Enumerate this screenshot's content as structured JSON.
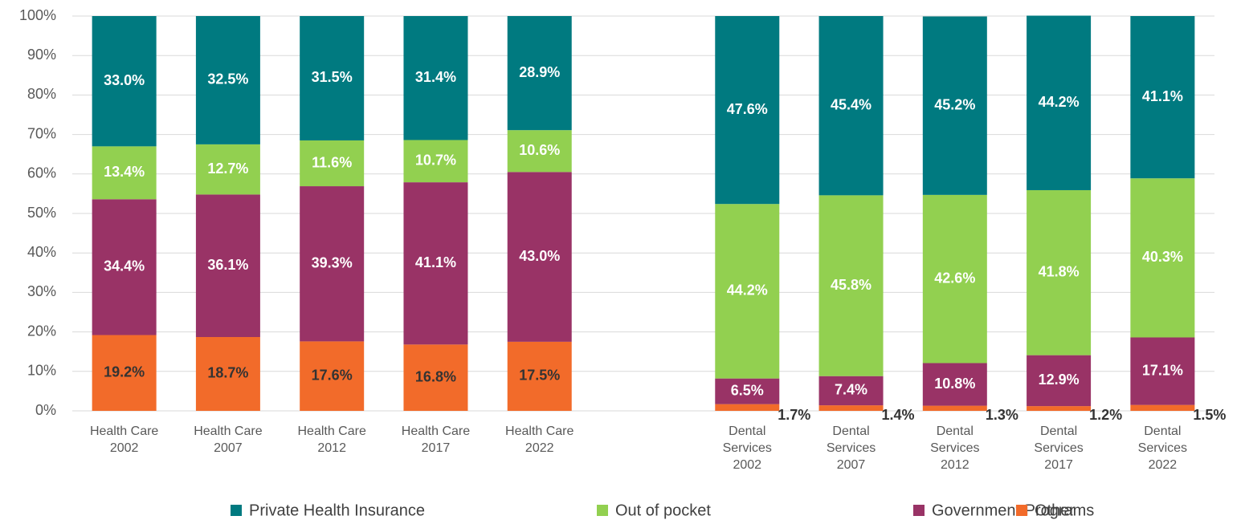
{
  "chart_data": {
    "type": "stacked_bar",
    "categories": [
      [
        "Health Care",
        "2002"
      ],
      [
        "Health Care",
        "2007"
      ],
      [
        "Health Care",
        "2012"
      ],
      [
        "Health Care",
        "2017"
      ],
      [
        "Health Care",
        "2022"
      ],
      null,
      [
        "Dental",
        "Services",
        "2002"
      ],
      [
        "Dental",
        "Services",
        "2007"
      ],
      [
        "Dental",
        "Services",
        "2012"
      ],
      [
        "Dental",
        "Services",
        "2017"
      ],
      [
        "Dental",
        "Services",
        "2022"
      ]
    ],
    "series": [
      {
        "name": "Other",
        "color": "#f26b2a",
        "values": [
          19.2,
          18.7,
          17.6,
          16.8,
          17.5,
          null,
          1.7,
          1.4,
          1.3,
          1.2,
          1.5
        ],
        "value_labels": [
          "19.2%",
          "18.7%",
          "17.6%",
          "16.8%",
          "17.5%",
          null,
          "1.7%",
          "1.4%",
          "1.3%",
          "1.2%",
          "1.5%"
        ]
      },
      {
        "name": "Government Programs",
        "color": "#993366",
        "values": [
          34.4,
          36.1,
          39.3,
          41.1,
          43.0,
          null,
          6.5,
          7.4,
          10.8,
          12.9,
          17.1
        ],
        "value_labels": [
          "34.4%",
          "36.1%",
          "39.3%",
          "41.1%",
          "43.0%",
          null,
          "6.5%",
          "7.4%",
          "10.8%",
          "12.9%",
          "17.1%"
        ]
      },
      {
        "name": "Out of pocket",
        "color": "#92d050",
        "values": [
          13.4,
          12.7,
          11.6,
          10.7,
          10.6,
          null,
          44.2,
          45.8,
          42.6,
          41.8,
          40.3
        ],
        "value_labels": [
          "13.4%",
          "12.7%",
          "11.6%",
          "10.7%",
          "10.6%",
          null,
          "44.2%",
          "45.8%",
          "42.6%",
          "41.8%",
          "40.3%"
        ]
      },
      {
        "name": "Private Health Insurance",
        "color": "#007a80",
        "values": [
          33.0,
          32.5,
          31.5,
          31.4,
          28.9,
          null,
          47.6,
          45.4,
          45.2,
          44.2,
          41.1
        ],
        "value_labels": [
          "33.0%",
          "32.5%",
          "31.5%",
          "31.4%",
          "28.9%",
          null,
          "47.6%",
          "45.4%",
          "45.2%",
          "44.2%",
          "41.1%"
        ]
      }
    ],
    "legend_order": [
      3,
      2,
      1,
      0
    ],
    "ylim": [
      0,
      100
    ],
    "yticks": [
      {
        "value": 0,
        "label": "0%"
      },
      {
        "value": 10,
        "label": "10%"
      },
      {
        "value": 20,
        "label": "20%"
      },
      {
        "value": 30,
        "label": "30%"
      },
      {
        "value": 40,
        "label": "40%"
      },
      {
        "value": 50,
        "label": "50%"
      },
      {
        "value": 60,
        "label": "60%"
      },
      {
        "value": 70,
        "label": "70%"
      },
      {
        "value": 80,
        "label": "80%"
      },
      {
        "value": 90,
        "label": "90%"
      },
      {
        "value": 100,
        "label": "100%"
      }
    ],
    "grid": true
  }
}
